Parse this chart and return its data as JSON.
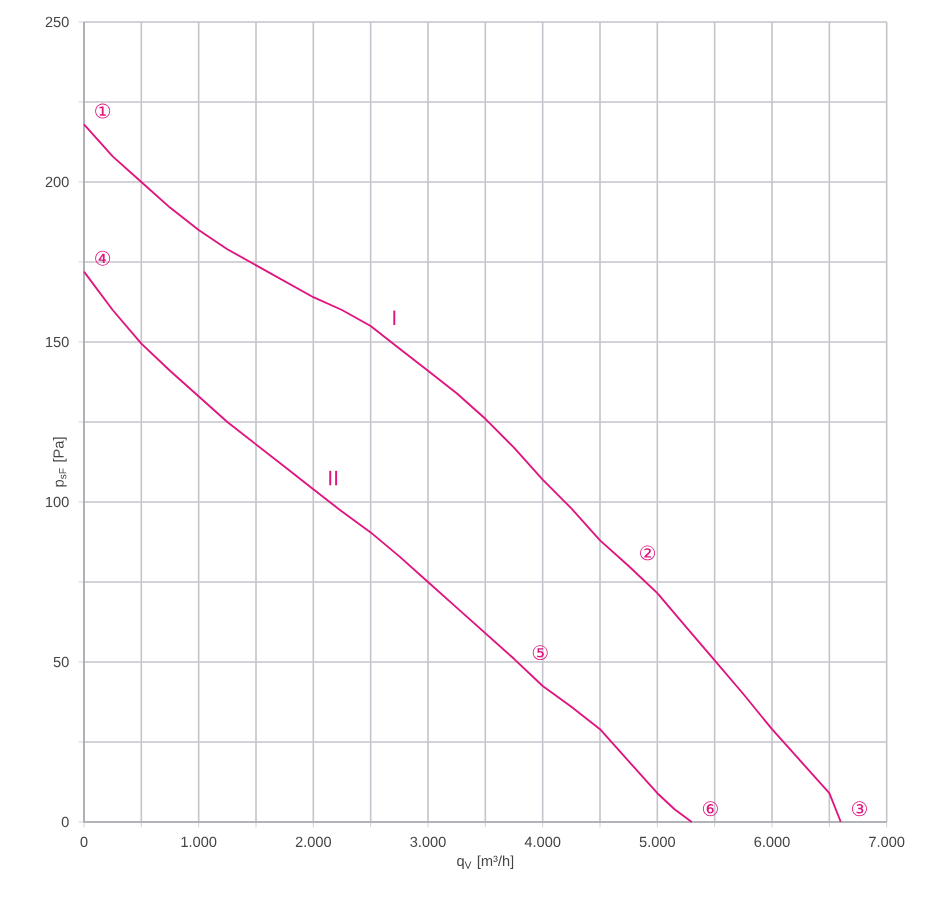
{
  "chart_data": {
    "type": "line",
    "xlabel": "q$_{V}$ [m³/h]",
    "ylabel": "p$_{sF}$ [Pa]",
    "x": [
      0,
      250,
      500,
      750,
      1000,
      1250,
      1500,
      1750,
      2000,
      2250,
      2500,
      2750,
      3000,
      3250,
      3500,
      3750,
      4000,
      4250,
      4500,
      4750,
      5000,
      5250,
      5500,
      5750,
      6000,
      6250,
      6500,
      6600
    ],
    "series": [
      {
        "color": "#e0147f",
        "values": [
          218,
          208,
          200,
          192,
          185,
          179,
          174,
          169,
          164,
          160,
          155,
          148,
          141,
          134,
          126,
          117,
          107,
          98,
          88,
          80,
          71.5,
          61,
          50.5,
          40,
          29,
          19,
          9,
          0
        ]
      },
      {
        "color": "#e0147f",
        "x": [
          0,
          250,
          500,
          750,
          1000,
          1250,
          1500,
          1750,
          2000,
          2250,
          2500,
          2750,
          3000,
          3250,
          3500,
          3750,
          4000,
          4250,
          4500,
          4750,
          5000,
          5150,
          5300
        ],
        "values": [
          172,
          160,
          149.5,
          141,
          133,
          125,
          118,
          111,
          104,
          97,
          90.5,
          83,
          75,
          67,
          59,
          51,
          42.5,
          36,
          29,
          19,
          9,
          4,
          0
        ]
      }
    ],
    "xlim": [
      0,
      7000
    ],
    "ylim": [
      0,
      250
    ],
    "xticks": [
      0,
      {
        "value": 500,
        "label": null
      },
      {
        "value": 1000,
        "label": "1.000"
      },
      {
        "value": 1500,
        "label": null
      },
      {
        "value": 2000,
        "label": "2.000"
      },
      {
        "value": 2500,
        "label": null
      },
      {
        "value": 3000,
        "label": "3.000"
      },
      {
        "value": 3500,
        "label": null
      },
      {
        "value": 4000,
        "label": "4.000"
      },
      {
        "value": 4500,
        "label": null
      },
      {
        "value": 5000,
        "label": "5.000"
      },
      {
        "value": 5500,
        "label": null
      },
      {
        "value": 6000,
        "label": "6.000"
      },
      {
        "value": 6500,
        "label": null
      },
      {
        "value": 7000,
        "label": "7.000"
      }
    ],
    "yticks": [
      0,
      {
        "value": 25,
        "label": null
      },
      50,
      {
        "value": 75,
        "label": null
      },
      100,
      {
        "value": 125,
        "label": null
      },
      150,
      {
        "value": 175,
        "label": null
      },
      200,
      {
        "value": 225,
        "label": null
      },
      250
    ],
    "grid": true,
    "marker": "none",
    "line_style": "solid",
    "annotations": [
      "①",
      "②",
      "③",
      "④",
      "⑤",
      "⑥",
      "I",
      "II"
    ]
  }
}
